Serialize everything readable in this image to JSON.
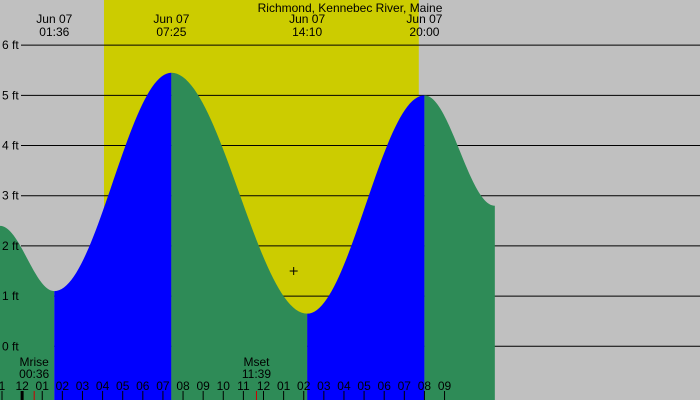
{
  "chart_data": {
    "type": "area",
    "title": "Richmond, Kennebec River, Maine",
    "x_unit": "hours from midnight, Jun 07",
    "xlim": [
      -1.1,
      33.7
    ],
    "ylim": [
      -1.07,
      6.9
    ],
    "y_ticks": [
      {
        "value": 0,
        "label": "0 ft"
      },
      {
        "value": 1,
        "label": "1 ft"
      },
      {
        "value": 2,
        "label": "2 ft"
      },
      {
        "value": 3,
        "label": "3 ft"
      },
      {
        "value": 4,
        "label": "4 ft"
      },
      {
        "value": 5,
        "label": "5 ft"
      },
      {
        "value": 6,
        "label": "6 ft"
      }
    ],
    "x_ticks": [
      {
        "value": -1,
        "label": "1"
      },
      {
        "value": 0,
        "label": "12"
      },
      {
        "value": 1,
        "label": "01"
      },
      {
        "value": 2,
        "label": "02"
      },
      {
        "value": 3,
        "label": "03"
      },
      {
        "value": 4,
        "label": "04"
      },
      {
        "value": 5,
        "label": "05"
      },
      {
        "value": 6,
        "label": "06"
      },
      {
        "value": 7,
        "label": "07"
      },
      {
        "value": 8,
        "label": "08"
      },
      {
        "value": 9,
        "label": "09"
      },
      {
        "value": 10,
        "label": "10"
      },
      {
        "value": 11,
        "label": "11"
      },
      {
        "value": 12,
        "label": "12"
      },
      {
        "value": 13,
        "label": "01"
      },
      {
        "value": 14,
        "label": "02"
      },
      {
        "value": 15,
        "label": "03"
      },
      {
        "value": 16,
        "label": "04"
      },
      {
        "value": 17,
        "label": "05"
      },
      {
        "value": 18,
        "label": "06"
      },
      {
        "value": 19,
        "label": "07"
      },
      {
        "value": 20,
        "label": "08"
      },
      {
        "value": 21,
        "label": "09"
      }
    ],
    "daylight": {
      "start": 4.07,
      "end": 19.72
    },
    "tide_points": [
      [
        -1.1,
        2.4
      ],
      [
        1.6,
        1.1
      ],
      [
        7.42,
        5.45
      ],
      [
        14.17,
        0.65
      ],
      [
        20.0,
        5.0
      ],
      [
        23.5,
        2.8
      ]
    ],
    "tide_events": [
      {
        "type": "low",
        "date": "Jun 07",
        "time": "01:36",
        "hour": 1.6,
        "height": 1.1
      },
      {
        "type": "high",
        "date": "Jun 07",
        "time": "07:25",
        "hour": 7.42,
        "height": 5.45
      },
      {
        "type": "low",
        "date": "Jun 07",
        "time": "14:10",
        "hour": 14.17,
        "height": 0.65
      },
      {
        "type": "high",
        "date": "Jun 07",
        "time": "20:00",
        "hour": 20.0,
        "height": 5.0
      }
    ],
    "moon_events": [
      {
        "label": "Mrise",
        "time": "00:36",
        "hour": 0.6
      },
      {
        "label": "Mset",
        "time": "11:39",
        "hour": 11.65
      }
    ],
    "marker": {
      "hour": 13.5,
      "height": 1.5
    },
    "colors": {
      "night": "#c0c0c0",
      "day": "#cccc00",
      "rising": "#0000ff",
      "falling": "#2e8b57",
      "grid": "#000000",
      "tick_red": "#cc0000"
    }
  }
}
